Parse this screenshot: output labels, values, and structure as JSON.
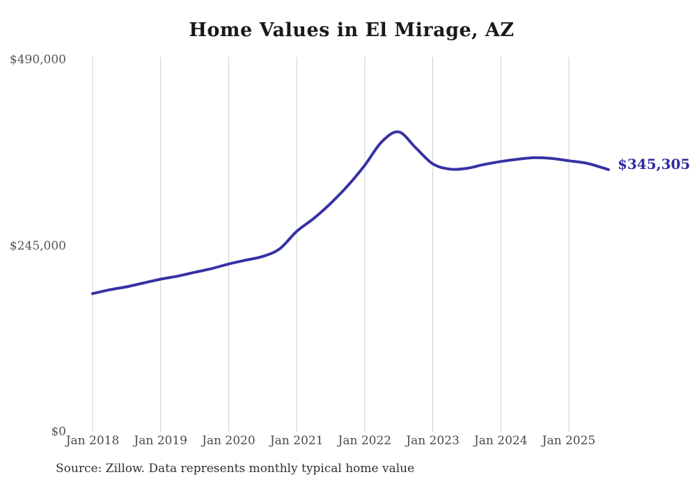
{
  "title": "Home Values in El Mirage, AZ",
  "source_note": "Source: Zillow. Data represents monthly typical home value",
  "end_label": "$345,305",
  "colors": {
    "line": "#3631a5",
    "end_label": "#2e2a9c",
    "gridline": "#cdcdcd",
    "title_text": "#191919",
    "axis_text": "#555555",
    "source_text": "#303030",
    "background": "#ffffff"
  },
  "chart_data": {
    "type": "line",
    "title": "Home Values in El Mirage, AZ",
    "xlabel": "",
    "ylabel": "",
    "grid": "vertical-only",
    "legend": "none",
    "ylim": [
      0,
      490000
    ],
    "x_tick_labels": [
      "Jan 2018",
      "Jan 2019",
      "Jan 2020",
      "Jan 2021",
      "Jan 2022",
      "Jan 2023",
      "Jan 2024",
      "Jan 2025"
    ],
    "y_ticks": [
      {
        "label": "$0",
        "value": 0
      },
      {
        "label": "$245,000",
        "value": 245000
      },
      {
        "label": "$490,000",
        "value": 490000
      }
    ],
    "series": [
      {
        "name": "Monthly typical home value",
        "points": [
          [
            "2018-01",
            182000
          ],
          [
            "2018-04",
            187000
          ],
          [
            "2018-07",
            191000
          ],
          [
            "2018-10",
            196000
          ],
          [
            "2019-01",
            201000
          ],
          [
            "2019-04",
            205000
          ],
          [
            "2019-07",
            210000
          ],
          [
            "2019-10",
            215000
          ],
          [
            "2020-01",
            221000
          ],
          [
            "2020-04",
            226000
          ],
          [
            "2020-07",
            231000
          ],
          [
            "2020-10",
            241000
          ],
          [
            "2021-01",
            264000
          ],
          [
            "2021-04",
            281000
          ],
          [
            "2021-07",
            301000
          ],
          [
            "2021-10",
            324000
          ],
          [
            "2022-01",
            351000
          ],
          [
            "2022-04",
            382000
          ],
          [
            "2022-07",
            395000
          ],
          [
            "2022-10",
            374000
          ],
          [
            "2023-01",
            353000
          ],
          [
            "2023-04",
            346000
          ],
          [
            "2023-07",
            347000
          ],
          [
            "2023-10",
            352000
          ],
          [
            "2024-01",
            356000
          ],
          [
            "2024-04",
            359000
          ],
          [
            "2024-07",
            361000
          ],
          [
            "2024-10",
            360000
          ],
          [
            "2025-01",
            357000
          ],
          [
            "2025-04",
            354000
          ],
          [
            "2025-06",
            350000
          ],
          [
            "2025-08",
            345305
          ]
        ]
      }
    ],
    "latest_value": 345305
  }
}
